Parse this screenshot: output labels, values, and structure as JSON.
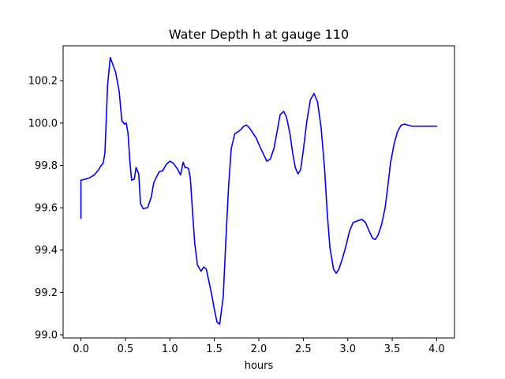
{
  "chart_data": {
    "type": "line",
    "title": "Water Depth h at gauge 110",
    "xlabel": "hours",
    "ylabel": "",
    "xlim": [
      -0.2,
      4.2
    ],
    "ylim": [
      98.985,
      100.365
    ],
    "grid": false,
    "xticks": [
      0.0,
      0.5,
      1.0,
      1.5,
      2.0,
      2.5,
      3.0,
      3.5,
      4.0
    ],
    "xtick_labels": [
      "0.0",
      "0.5",
      "1.0",
      "1.5",
      "2.0",
      "2.5",
      "3.0",
      "3.5",
      "4.0"
    ],
    "yticks": [
      99.0,
      99.2,
      99.4,
      99.6,
      99.8,
      100.0,
      100.2
    ],
    "ytick_labels": [
      "99.0",
      "99.2",
      "99.4",
      "99.6",
      "99.8",
      "100.0",
      "100.2"
    ],
    "series": [
      {
        "color": "#0000ff",
        "x": [
          0.0,
          0.0,
          0.05,
          0.1,
          0.15,
          0.2,
          0.22,
          0.25,
          0.27,
          0.3,
          0.33,
          0.36,
          0.39,
          0.43,
          0.46,
          0.49,
          0.51,
          0.53,
          0.55,
          0.57,
          0.6,
          0.62,
          0.65,
          0.67,
          0.7,
          0.72,
          0.75,
          0.79,
          0.82,
          0.88,
          0.92,
          0.96,
          1.0,
          1.04,
          1.09,
          1.12,
          1.15,
          1.17,
          1.19,
          1.21,
          1.23,
          1.26,
          1.28,
          1.31,
          1.35,
          1.38,
          1.41,
          1.44,
          1.47,
          1.5,
          1.53,
          1.56,
          1.6,
          1.63,
          1.66,
          1.69,
          1.73,
          1.77,
          1.8,
          1.83,
          1.86,
          1.89,
          1.93,
          1.97,
          2.0,
          2.05,
          2.09,
          2.13,
          2.17,
          2.21,
          2.24,
          2.28,
          2.31,
          2.35,
          2.38,
          2.41,
          2.44,
          2.47,
          2.5,
          2.54,
          2.58,
          2.62,
          2.66,
          2.7,
          2.74,
          2.77,
          2.8,
          2.84,
          2.87,
          2.9,
          2.94,
          2.98,
          3.02,
          3.06,
          3.09,
          3.12,
          3.16,
          3.2,
          3.24,
          3.28,
          3.31,
          3.34,
          3.38,
          3.42,
          3.45,
          3.48,
          3.52,
          3.56,
          3.6,
          3.64,
          3.68,
          3.72,
          3.76,
          3.8,
          3.84,
          3.88,
          3.92,
          3.95,
          3.98,
          4.0
        ],
        "y": [
          99.55,
          99.73,
          99.735,
          99.742,
          99.755,
          99.78,
          99.795,
          99.81,
          99.86,
          100.18,
          100.31,
          100.275,
          100.24,
          100.15,
          100.01,
          99.995,
          100.0,
          99.95,
          99.82,
          99.73,
          99.735,
          99.79,
          99.76,
          99.62,
          99.595,
          99.598,
          99.6,
          99.65,
          99.72,
          99.77,
          99.775,
          99.805,
          99.82,
          99.81,
          99.78,
          99.755,
          99.815,
          99.79,
          99.79,
          99.785,
          99.74,
          99.55,
          99.43,
          99.33,
          99.3,
          99.32,
          99.31,
          99.25,
          99.19,
          99.12,
          99.06,
          99.05,
          99.18,
          99.45,
          99.7,
          99.88,
          99.95,
          99.96,
          99.97,
          99.985,
          99.99,
          99.98,
          99.955,
          99.93,
          99.9,
          99.855,
          99.82,
          99.83,
          99.88,
          99.97,
          100.04,
          100.055,
          100.03,
          99.95,
          99.86,
          99.79,
          99.76,
          99.78,
          99.87,
          100.01,
          100.11,
          100.14,
          100.1,
          99.98,
          99.78,
          99.57,
          99.41,
          99.31,
          99.29,
          99.31,
          99.36,
          99.42,
          99.49,
          99.53,
          99.535,
          99.54,
          99.545,
          99.53,
          99.49,
          99.455,
          99.45,
          99.47,
          99.52,
          99.6,
          99.7,
          99.81,
          99.9,
          99.96,
          99.99,
          99.995,
          99.99,
          99.985,
          99.985,
          99.985,
          99.985,
          99.985,
          99.985,
          99.985,
          99.985,
          99.985
        ]
      }
    ]
  }
}
